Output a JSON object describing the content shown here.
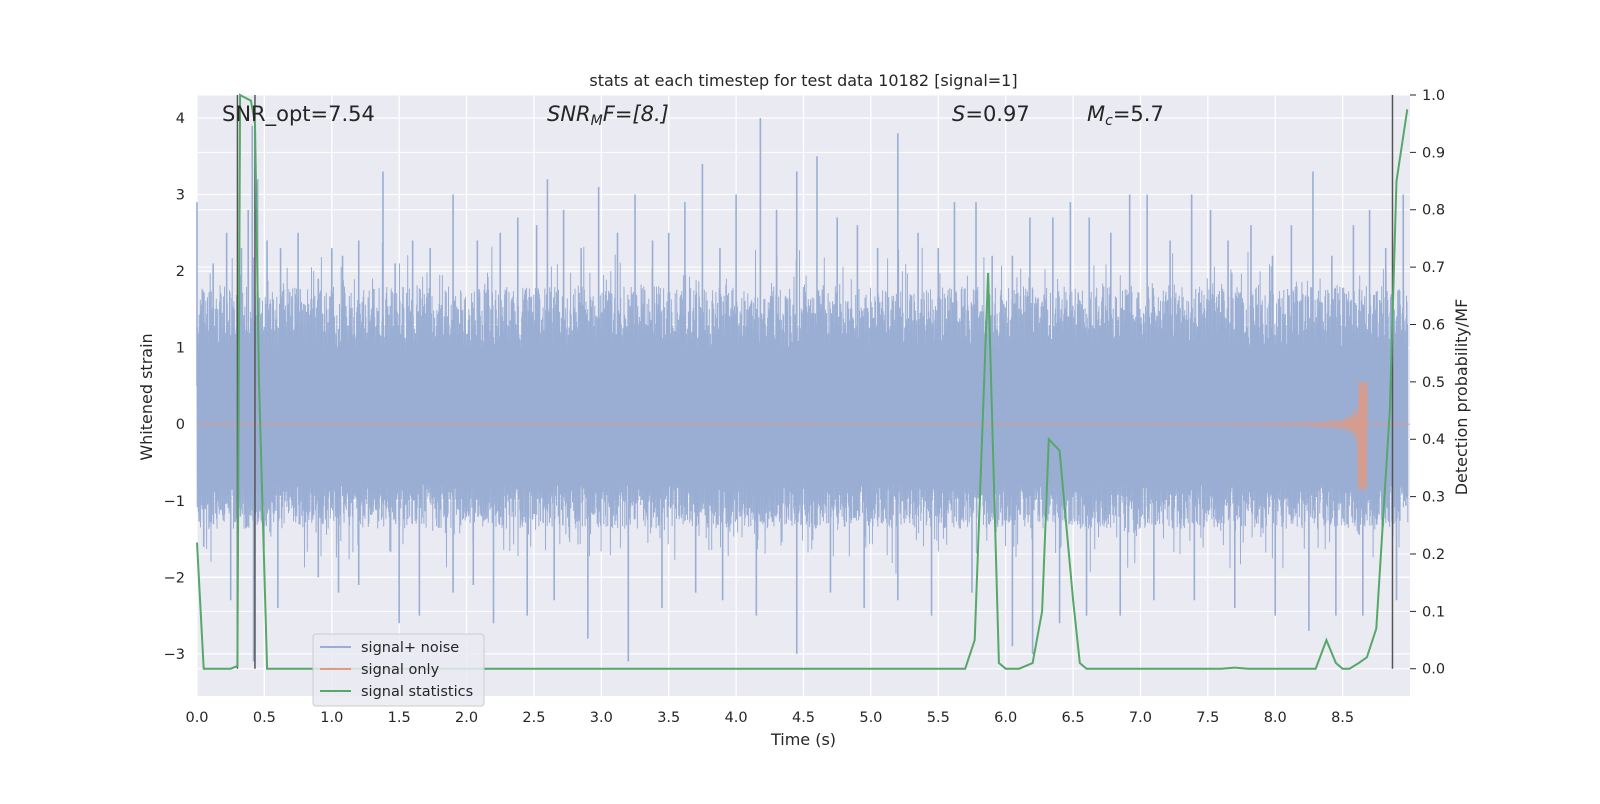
{
  "chart_data": {
    "type": "line",
    "title": "stats at each timestep for test data 10182 [signal=1]",
    "xlabel": "Time (s)",
    "ylabel_left": "Whitened strain",
    "ylabel_right": "Detection probability/MF",
    "xlim": [
      0.0,
      9.0
    ],
    "ylim_left": [
      -3.55,
      4.3
    ],
    "ylim_right": [
      -0.0475,
      1.0
    ],
    "x_ticks": [
      "0.0",
      "0.5",
      "1.0",
      "1.5",
      "2.0",
      "2.5",
      "3.0",
      "3.5",
      "4.0",
      "4.5",
      "5.0",
      "5.5",
      "6.0",
      "6.5",
      "7.0",
      "7.5",
      "8.0",
      "8.5"
    ],
    "x_tick_values": [
      0,
      0.5,
      1,
      1.5,
      2,
      2.5,
      3,
      3.5,
      4,
      4.5,
      5,
      5.5,
      6,
      6.5,
      7,
      7.5,
      8,
      8.5
    ],
    "y_ticks_left": [
      "−3",
      "−2",
      "−1",
      "0",
      "1",
      "2",
      "3",
      "4"
    ],
    "y_tick_values_left": [
      -3,
      -2,
      -1,
      0,
      1,
      2,
      3,
      4
    ],
    "y_ticks_right": [
      "0.0",
      "0.1",
      "0.2",
      "0.3",
      "0.4",
      "0.5",
      "0.6",
      "0.7",
      "0.8",
      "0.9",
      "1.0"
    ],
    "y_tick_values_right": [
      0,
      0.1,
      0.2,
      0.3,
      0.4,
      0.5,
      0.6,
      0.7,
      0.8,
      0.9,
      1.0
    ],
    "grid": true,
    "legend_position": "lower-left",
    "annotations": {
      "snr_opt": "SNR_opt=7.54",
      "snr_mf_main": "SNR",
      "snr_mf_sub": "M",
      "snr_mf_rest": "F=[8.]",
      "s_main": "S",
      "s_rest": "=0.97",
      "mc_main": "M",
      "mc_sub": "c",
      "mc_rest": "=5.7"
    },
    "vertical_markers": [
      0.3,
      0.43,
      8.87
    ],
    "series": [
      {
        "name": "signal+ noise",
        "color": "#9aaed4",
        "axis": "left",
        "description_type": "noise",
        "envelope_typical": [
          -1.3,
          1.8
        ],
        "spikes_x": [
          0.0,
          0.12,
          0.22,
          0.33,
          0.38,
          0.41,
          0.45,
          0.52,
          0.62,
          0.75,
          0.9,
          1.0,
          1.08,
          1.2,
          1.38,
          1.47,
          1.6,
          1.73,
          1.9,
          2.08,
          2.25,
          2.38,
          2.52,
          2.6,
          2.72,
          2.85,
          2.98,
          3.12,
          3.25,
          3.38,
          3.5,
          3.62,
          3.75,
          3.88,
          4.0,
          4.18,
          4.3,
          4.45,
          4.6,
          4.75,
          4.9,
          5.05,
          5.2,
          5.35,
          5.5,
          5.62,
          5.78,
          5.9,
          6.05,
          6.18,
          6.35,
          6.48,
          6.62,
          6.78,
          6.92,
          7.05,
          7.22,
          7.38,
          7.52,
          7.65,
          7.82,
          7.98,
          8.12,
          8.28,
          8.42,
          8.58,
          8.7,
          8.82,
          8.95
        ],
        "spikes_y": [
          2.9,
          2.1,
          2.5,
          2.3,
          2.8,
          3.9,
          3.2,
          2.4,
          2.3,
          2.5,
          1.9,
          2.3,
          2.2,
          2.4,
          3.3,
          2.1,
          2.4,
          2.3,
          3.0,
          2.4,
          2.5,
          2.7,
          2.6,
          3.2,
          2.8,
          2.3,
          3.1,
          2.5,
          3.0,
          2.4,
          2.5,
          2.9,
          3.4,
          2.3,
          3.0,
          4.0,
          2.8,
          3.3,
          3.5,
          2.7,
          2.6,
          2.3,
          3.8,
          2.5,
          2.3,
          2.9,
          2.9,
          2.2,
          2.2,
          2.7,
          2.7,
          2.9,
          2.7,
          2.5,
          3.0,
          3.0,
          2.4,
          3.0,
          2.8,
          2.4,
          2.6,
          2.2,
          2.6,
          3.3,
          2.2,
          2.6,
          2.8,
          2.3,
          3.0
        ],
        "dips_x": [
          0.05,
          0.25,
          0.42,
          0.6,
          0.9,
          1.05,
          1.2,
          1.5,
          1.65,
          1.9,
          2.05,
          2.2,
          2.45,
          2.65,
          2.9,
          3.2,
          3.45,
          3.7,
          3.9,
          4.15,
          4.45,
          4.7,
          4.95,
          5.2,
          5.45,
          5.75,
          6.05,
          6.2,
          6.4,
          6.6,
          6.85,
          7.1,
          7.4,
          7.7,
          8.0,
          8.25,
          8.45,
          8.65,
          8.9
        ],
        "dips_y": [
          -1.6,
          -2.3,
          -3.1,
          -2.4,
          -2.0,
          -2.2,
          -2.1,
          -2.6,
          -2.5,
          -2.2,
          -2.1,
          -2.6,
          -2.5,
          -2.3,
          -2.8,
          -3.1,
          -2.4,
          -2.2,
          -2.3,
          -2.5,
          -3.0,
          -2.2,
          -2.4,
          -2.3,
          -2.5,
          -2.2,
          -2.9,
          -3.0,
          -2.6,
          -2.5,
          -2.5,
          -2.3,
          -2.3,
          -2.4,
          -2.5,
          -2.7,
          -2.5,
          -2.5,
          -2.3
        ]
      },
      {
        "name": "signal only",
        "color": "#dd9a85",
        "axis": "left",
        "description_type": "chirp",
        "chirp_start": 0.0,
        "chirp_visible_from": 3.3,
        "chirp_peak_x": 8.62,
        "chirp_peak_y": 0.55,
        "chirp_trough_y": -0.85,
        "chirp_end": 8.68
      },
      {
        "name": "signal statistics",
        "color": "#55a868",
        "axis": "right",
        "x": [
          0.0,
          0.05,
          0.15,
          0.25,
          0.3,
          0.32,
          0.4,
          0.43,
          0.46,
          0.52,
          0.6,
          5.7,
          5.77,
          5.87,
          5.95,
          6.0,
          6.1,
          6.2,
          6.27,
          6.32,
          6.4,
          6.45,
          6.5,
          6.55,
          6.6,
          6.7,
          7.6,
          7.7,
          7.8,
          8.2,
          8.3,
          8.38,
          8.45,
          8.5,
          8.55,
          8.62,
          8.68,
          8.75,
          8.85,
          8.9,
          8.98
        ],
        "values": [
          0.22,
          0.0,
          0.0,
          0.0,
          0.005,
          1.0,
          0.99,
          0.95,
          0.5,
          0.0,
          0.0,
          0.0,
          0.05,
          0.69,
          0.01,
          0.0,
          0.0,
          0.01,
          0.1,
          0.4,
          0.38,
          0.25,
          0.12,
          0.01,
          0.0,
          0.0,
          0.0,
          0.002,
          0.0,
          0.0,
          0.0,
          0.05,
          0.01,
          0.0,
          0.0,
          0.01,
          0.02,
          0.07,
          0.45,
          0.85,
          0.975
        ]
      }
    ]
  }
}
